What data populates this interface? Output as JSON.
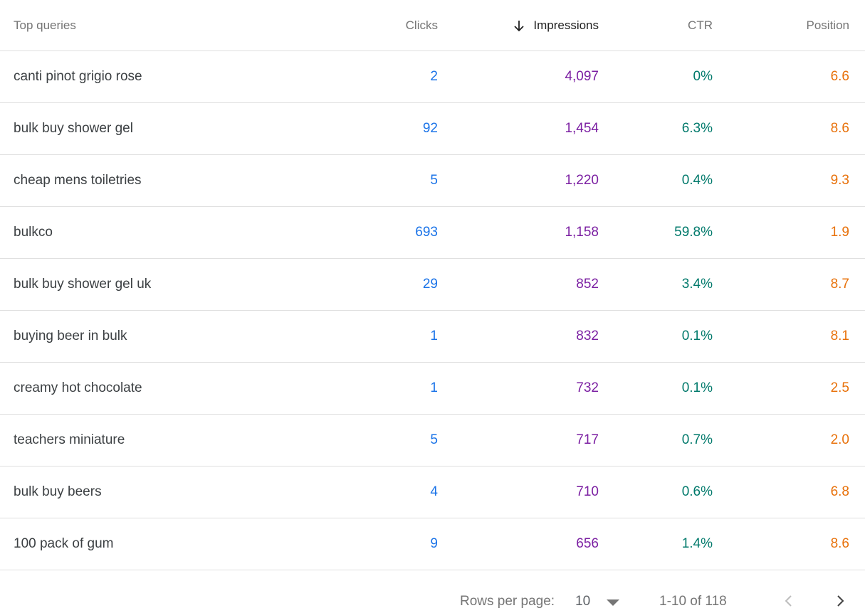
{
  "header": {
    "query": "Top queries",
    "clicks": "Clicks",
    "impressions": "Impressions",
    "ctr": "CTR",
    "position": "Position",
    "sort_icon": "arrow-downward-icon"
  },
  "rows": [
    {
      "query": "canti pinot grigio rose",
      "clicks": "2",
      "impressions": "4,097",
      "ctr": "0%",
      "position": "6.6"
    },
    {
      "query": "bulk buy shower gel",
      "clicks": "92",
      "impressions": "1,454",
      "ctr": "6.3%",
      "position": "8.6"
    },
    {
      "query": "cheap mens toiletries",
      "clicks": "5",
      "impressions": "1,220",
      "ctr": "0.4%",
      "position": "9.3"
    },
    {
      "query": "bulkco",
      "clicks": "693",
      "impressions": "1,158",
      "ctr": "59.8%",
      "position": "1.9"
    },
    {
      "query": "bulk buy shower gel uk",
      "clicks": "29",
      "impressions": "852",
      "ctr": "3.4%",
      "position": "8.7"
    },
    {
      "query": "buying beer in bulk",
      "clicks": "1",
      "impressions": "832",
      "ctr": "0.1%",
      "position": "8.1"
    },
    {
      "query": "creamy hot chocolate",
      "clicks": "1",
      "impressions": "732",
      "ctr": "0.1%",
      "position": "2.5"
    },
    {
      "query": "teachers miniature",
      "clicks": "5",
      "impressions": "717",
      "ctr": "0.7%",
      "position": "2.0"
    },
    {
      "query": "bulk buy beers",
      "clicks": "4",
      "impressions": "710",
      "ctr": "0.6%",
      "position": "6.8"
    },
    {
      "query": "100 pack of gum",
      "clicks": "9",
      "impressions": "656",
      "ctr": "1.4%",
      "position": "8.6"
    }
  ],
  "footer": {
    "rows_per_page_label": "Rows per page:",
    "rows_per_page_value": "10",
    "range": "1-10 of 118",
    "dropdown_icon": "arrow-drop-down-icon",
    "prev_icon": "chevron-left-icon",
    "next_icon": "chevron-right-icon"
  },
  "colors": {
    "clicks": "#1a73e8",
    "impressions": "#7b1fa2",
    "ctr": "#00796b",
    "position": "#e8710a"
  }
}
